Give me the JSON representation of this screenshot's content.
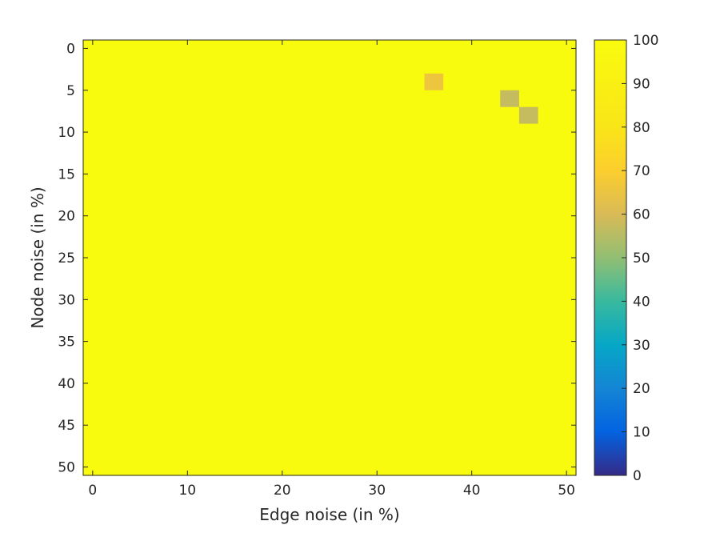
{
  "chart_data": {
    "type": "heatmap",
    "title": "",
    "xlabel": "Edge noise (in %)",
    "ylabel": "Node noise (in %)",
    "x_range": [
      0,
      50
    ],
    "y_range": [
      0,
      50
    ],
    "x_step": 2,
    "y_step": 2,
    "y_reversed": true,
    "x_ticks": [
      0,
      10,
      20,
      30,
      40,
      50
    ],
    "y_ticks": [
      0,
      5,
      10,
      15,
      20,
      25,
      30,
      35,
      40,
      45,
      50
    ],
    "colorbar": {
      "colormap": "parula",
      "range": [
        0,
        100
      ],
      "ticks": [
        0,
        10,
        20,
        30,
        40,
        50,
        60,
        70,
        80,
        90,
        100
      ]
    },
    "values": [
      [
        100,
        100,
        100,
        100,
        100,
        100,
        100,
        100,
        100,
        100,
        100,
        100,
        100,
        100,
        100,
        100,
        100,
        100,
        100,
        100,
        100,
        100,
        100,
        100,
        100,
        100
      ],
      [
        100,
        100,
        100,
        100,
        100,
        100,
        100,
        100,
        100,
        100,
        100,
        100,
        100,
        100,
        100,
        100,
        100,
        100,
        100,
        100,
        100,
        100,
        100,
        100,
        100,
        100
      ],
      [
        100,
        100,
        100,
        100,
        100,
        100,
        100,
        100,
        100,
        100,
        100,
        100,
        100,
        100,
        100,
        100,
        100,
        100,
        66,
        100,
        100,
        100,
        100,
        100,
        100,
        100
      ],
      [
        100,
        100,
        100,
        100,
        100,
        100,
        100,
        100,
        100,
        100,
        100,
        100,
        100,
        100,
        100,
        100,
        100,
        100,
        100,
        100,
        100,
        100,
        57,
        100,
        100,
        100
      ],
      [
        100,
        100,
        100,
        100,
        100,
        100,
        100,
        100,
        100,
        100,
        100,
        100,
        100,
        100,
        100,
        100,
        100,
        100,
        100,
        100,
        100,
        100,
        100,
        57,
        100,
        100
      ],
      [
        100,
        100,
        100,
        100,
        100,
        100,
        100,
        100,
        100,
        100,
        100,
        100,
        100,
        100,
        100,
        100,
        100,
        100,
        100,
        100,
        100,
        100,
        100,
        100,
        100,
        100
      ],
      [
        100,
        100,
        100,
        100,
        100,
        100,
        100,
        100,
        100,
        100,
        100,
        100,
        100,
        100,
        100,
        100,
        100,
        100,
        100,
        100,
        100,
        100,
        100,
        100,
        100,
        100
      ],
      [
        100,
        100,
        100,
        100,
        100,
        100,
        100,
        100,
        100,
        100,
        100,
        100,
        100,
        100,
        100,
        100,
        100,
        100,
        100,
        100,
        100,
        100,
        100,
        100,
        100,
        100
      ],
      [
        100,
        100,
        100,
        100,
        100,
        100,
        100,
        100,
        100,
        100,
        100,
        100,
        100,
        100,
        100,
        100,
        100,
        100,
        100,
        100,
        100,
        100,
        100,
        100,
        100,
        100
      ],
      [
        100,
        100,
        100,
        100,
        100,
        100,
        100,
        100,
        100,
        100,
        100,
        100,
        100,
        100,
        100,
        100,
        100,
        100,
        100,
        100,
        100,
        100,
        100,
        100,
        100,
        100
      ],
      [
        100,
        100,
        100,
        100,
        100,
        100,
        100,
        100,
        100,
        100,
        100,
        100,
        100,
        100,
        100,
        100,
        100,
        100,
        100,
        100,
        100,
        100,
        100,
        100,
        100,
        100
      ],
      [
        100,
        100,
        100,
        100,
        100,
        100,
        100,
        100,
        100,
        100,
        100,
        100,
        100,
        100,
        100,
        100,
        100,
        100,
        100,
        100,
        100,
        100,
        100,
        100,
        100,
        100
      ],
      [
        100,
        100,
        100,
        100,
        100,
        100,
        100,
        100,
        100,
        100,
        100,
        100,
        100,
        100,
        100,
        100,
        100,
        100,
        100,
        100,
        100,
        100,
        100,
        100,
        100,
        100
      ],
      [
        100,
        100,
        100,
        100,
        100,
        100,
        100,
        100,
        100,
        100,
        100,
        100,
        100,
        100,
        100,
        100,
        100,
        100,
        100,
        100,
        100,
        100,
        100,
        100,
        100,
        100
      ],
      [
        100,
        100,
        100,
        100,
        100,
        100,
        100,
        100,
        100,
        100,
        100,
        100,
        100,
        100,
        100,
        100,
        100,
        100,
        100,
        100,
        100,
        100,
        100,
        100,
        100,
        100
      ],
      [
        100,
        100,
        100,
        100,
        100,
        100,
        100,
        100,
        100,
        100,
        100,
        100,
        100,
        100,
        100,
        100,
        100,
        100,
        100,
        100,
        100,
        100,
        100,
        100,
        100,
        100
      ],
      [
        100,
        100,
        100,
        100,
        100,
        100,
        100,
        100,
        100,
        100,
        100,
        100,
        100,
        100,
        100,
        100,
        100,
        100,
        100,
        100,
        100,
        100,
        100,
        100,
        100,
        100
      ],
      [
        100,
        100,
        100,
        100,
        100,
        100,
        100,
        100,
        100,
        100,
        100,
        100,
        100,
        100,
        100,
        100,
        100,
        100,
        100,
        100,
        100,
        100,
        100,
        100,
        100,
        100
      ],
      [
        100,
        100,
        100,
        100,
        100,
        100,
        100,
        100,
        100,
        100,
        100,
        100,
        100,
        100,
        100,
        100,
        100,
        100,
        100,
        100,
        100,
        100,
        100,
        100,
        100,
        100
      ],
      [
        100,
        100,
        100,
        100,
        100,
        100,
        100,
        100,
        100,
        100,
        100,
        100,
        100,
        100,
        100,
        100,
        100,
        100,
        100,
        100,
        100,
        100,
        100,
        100,
        100,
        100
      ],
      [
        100,
        100,
        100,
        100,
        100,
        100,
        100,
        100,
        100,
        100,
        100,
        100,
        100,
        100,
        100,
        100,
        100,
        100,
        100,
        100,
        100,
        100,
        100,
        100,
        100,
        100
      ],
      [
        100,
        100,
        100,
        100,
        100,
        100,
        100,
        100,
        100,
        100,
        100,
        100,
        100,
        100,
        100,
        100,
        100,
        100,
        100,
        100,
        100,
        100,
        100,
        100,
        100,
        100
      ],
      [
        100,
        100,
        100,
        100,
        100,
        100,
        100,
        100,
        100,
        100,
        100,
        100,
        100,
        100,
        100,
        100,
        100,
        100,
        100,
        100,
        100,
        100,
        100,
        100,
        100,
        100
      ],
      [
        100,
        100,
        100,
        100,
        100,
        100,
        100,
        100,
        100,
        100,
        100,
        100,
        100,
        100,
        100,
        100,
        100,
        100,
        100,
        100,
        100,
        100,
        100,
        100,
        100,
        100
      ],
      [
        100,
        100,
        100,
        100,
        100,
        100,
        100,
        100,
        100,
        100,
        100,
        100,
        100,
        100,
        100,
        100,
        100,
        100,
        100,
        100,
        100,
        100,
        100,
        100,
        100,
        100
      ],
      [
        100,
        100,
        100,
        100,
        100,
        100,
        100,
        100,
        100,
        100,
        100,
        100,
        100,
        100,
        100,
        100,
        100,
        100,
        100,
        100,
        100,
        100,
        100,
        100,
        100,
        100
      ]
    ]
  }
}
